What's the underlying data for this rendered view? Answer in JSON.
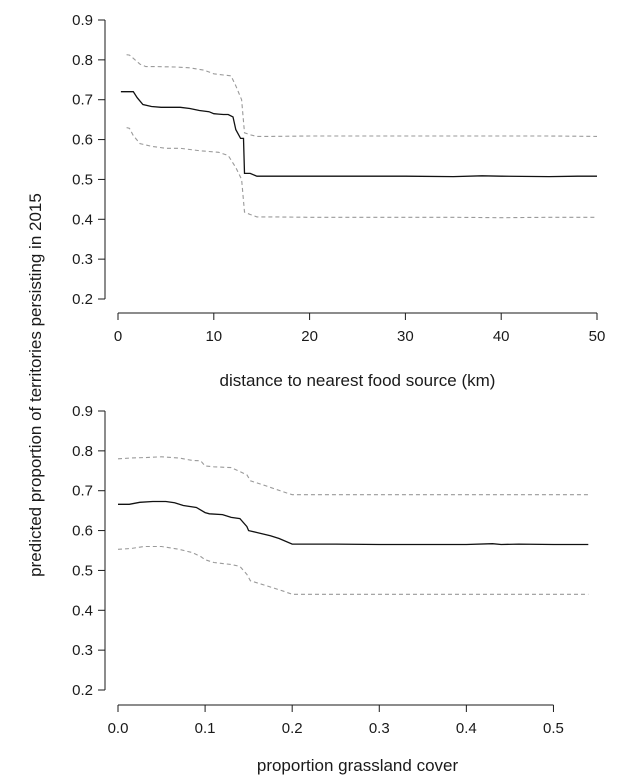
{
  "figure": {
    "shared_ylabel": "predicted proportion of territories persisting in 2015"
  },
  "chart_data": [
    {
      "type": "line",
      "xlabel": "distance to nearest food source (km)",
      "ylabel": "predicted proportion of territories persisting in 2015",
      "xlim": [
        0,
        50
      ],
      "ylim": [
        0.2,
        0.9
      ],
      "xticks": [
        0,
        10,
        20,
        30,
        40,
        50
      ],
      "xtick_labels": [
        "0",
        "10",
        "20",
        "30",
        "40",
        "50"
      ],
      "yticks": [
        0.2,
        0.3,
        0.4,
        0.5,
        0.6,
        0.7,
        0.8,
        0.9
      ],
      "ytick_labels": [
        "0.2",
        "0.3",
        "0.4",
        "0.5",
        "0.6",
        "0.7",
        "0.8",
        "0.9"
      ],
      "grid": false,
      "series": [
        {
          "style": "solid",
          "color": "#111111",
          "x": [
            0.3,
            1.0,
            1.6,
            2.0,
            2.6,
            3.5,
            4.5,
            5.5,
            6.5,
            7.5,
            8.5,
            9.5,
            10.0,
            10.5,
            11.0,
            11.5,
            12.0,
            12.3,
            12.8,
            13.1,
            13.2,
            13.8,
            14.5,
            15.5,
            17.0,
            20.0,
            25.0,
            30.0,
            35.0,
            38.0,
            40.0,
            45.0,
            48.0,
            50.0
          ],
          "values": [
            0.72,
            0.72,
            0.72,
            0.705,
            0.688,
            0.683,
            0.681,
            0.681,
            0.681,
            0.678,
            0.673,
            0.67,
            0.665,
            0.664,
            0.663,
            0.663,
            0.657,
            0.625,
            0.603,
            0.603,
            0.515,
            0.515,
            0.508,
            0.508,
            0.508,
            0.508,
            0.508,
            0.508,
            0.507,
            0.509,
            0.508,
            0.507,
            0.508,
            0.508
          ]
        },
        {
          "style": "dashed",
          "color": "#9a9a9a",
          "x": [
            0.9,
            1.2,
            1.6,
            2.3,
            2.9,
            4.0,
            6.0,
            7.5,
            9.0,
            10.0,
            11.0,
            11.8,
            12.3,
            12.9,
            13.2,
            13.8,
            14.5,
            16.0,
            20.0,
            25.0,
            30.0,
            35.0,
            40.0,
            45.0,
            50.0
          ],
          "values": [
            0.813,
            0.812,
            0.804,
            0.789,
            0.783,
            0.783,
            0.782,
            0.78,
            0.774,
            0.765,
            0.762,
            0.76,
            0.735,
            0.7,
            0.617,
            0.612,
            0.608,
            0.608,
            0.609,
            0.609,
            0.609,
            0.609,
            0.609,
            0.609,
            0.608
          ]
        },
        {
          "style": "dashed",
          "color": "#9a9a9a",
          "x": [
            0.9,
            1.2,
            1.6,
            2.3,
            3.5,
            5.0,
            6.5,
            7.5,
            8.5,
            9.5,
            10.5,
            11.5,
            12.3,
            12.9,
            13.2,
            13.8,
            14.5,
            16.0,
            20.0,
            25.0,
            30.0,
            35.0,
            40.0,
            45.0,
            50.0
          ],
          "values": [
            0.63,
            0.628,
            0.61,
            0.59,
            0.583,
            0.578,
            0.578,
            0.575,
            0.572,
            0.57,
            0.568,
            0.56,
            0.53,
            0.5,
            0.418,
            0.412,
            0.406,
            0.406,
            0.405,
            0.405,
            0.405,
            0.405,
            0.404,
            0.405,
            0.405
          ]
        }
      ]
    },
    {
      "type": "line",
      "xlabel": "proportion grassland cover",
      "ylabel": "predicted proportion of territories persisting in 2015",
      "xlim": [
        0,
        0.55
      ],
      "ylim": [
        0.2,
        0.9
      ],
      "xticks": [
        0,
        0.1,
        0.2,
        0.3,
        0.4,
        0.5
      ],
      "xtick_labels": [
        "0.0",
        "0.1",
        "0.2",
        "0.3",
        "0.4",
        "0.5"
      ],
      "yticks": [
        0.2,
        0.3,
        0.4,
        0.5,
        0.6,
        0.7,
        0.8,
        0.9
      ],
      "ytick_labels": [
        "0.2",
        "0.3",
        "0.4",
        "0.5",
        "0.6",
        "0.7",
        "0.8",
        "0.9"
      ],
      "grid": false,
      "series": [
        {
          "style": "solid",
          "color": "#111111",
          "x": [
            0.0,
            0.013,
            0.025,
            0.04,
            0.055,
            0.065,
            0.075,
            0.09,
            0.1,
            0.105,
            0.12,
            0.13,
            0.14,
            0.148,
            0.15,
            0.16,
            0.175,
            0.185,
            0.2,
            0.25,
            0.3,
            0.35,
            0.4,
            0.43,
            0.44,
            0.46,
            0.5,
            0.54
          ],
          "values": [
            0.666,
            0.666,
            0.671,
            0.673,
            0.673,
            0.67,
            0.663,
            0.658,
            0.645,
            0.642,
            0.64,
            0.633,
            0.63,
            0.61,
            0.6,
            0.595,
            0.587,
            0.58,
            0.566,
            0.566,
            0.565,
            0.565,
            0.565,
            0.567,
            0.565,
            0.566,
            0.565,
            0.565
          ]
        },
        {
          "style": "dashed",
          "color": "#9a9a9a",
          "x": [
            0.0,
            0.015,
            0.03,
            0.05,
            0.07,
            0.085,
            0.095,
            0.1,
            0.11,
            0.13,
            0.14,
            0.148,
            0.152,
            0.17,
            0.19,
            0.2,
            0.25,
            0.3,
            0.4,
            0.5,
            0.54
          ],
          "values": [
            0.78,
            0.782,
            0.783,
            0.785,
            0.782,
            0.776,
            0.775,
            0.762,
            0.76,
            0.758,
            0.748,
            0.74,
            0.725,
            0.712,
            0.697,
            0.69,
            0.69,
            0.69,
            0.69,
            0.69,
            0.69
          ]
        },
        {
          "style": "dashed",
          "color": "#9a9a9a",
          "x": [
            0.0,
            0.015,
            0.03,
            0.05,
            0.07,
            0.085,
            0.095,
            0.1,
            0.11,
            0.13,
            0.14,
            0.148,
            0.152,
            0.17,
            0.19,
            0.2,
            0.25,
            0.3,
            0.4,
            0.5,
            0.54
          ],
          "values": [
            0.553,
            0.555,
            0.56,
            0.56,
            0.553,
            0.545,
            0.535,
            0.527,
            0.52,
            0.515,
            0.51,
            0.49,
            0.474,
            0.462,
            0.448,
            0.44,
            0.44,
            0.44,
            0.44,
            0.44,
            0.44
          ]
        }
      ]
    }
  ]
}
